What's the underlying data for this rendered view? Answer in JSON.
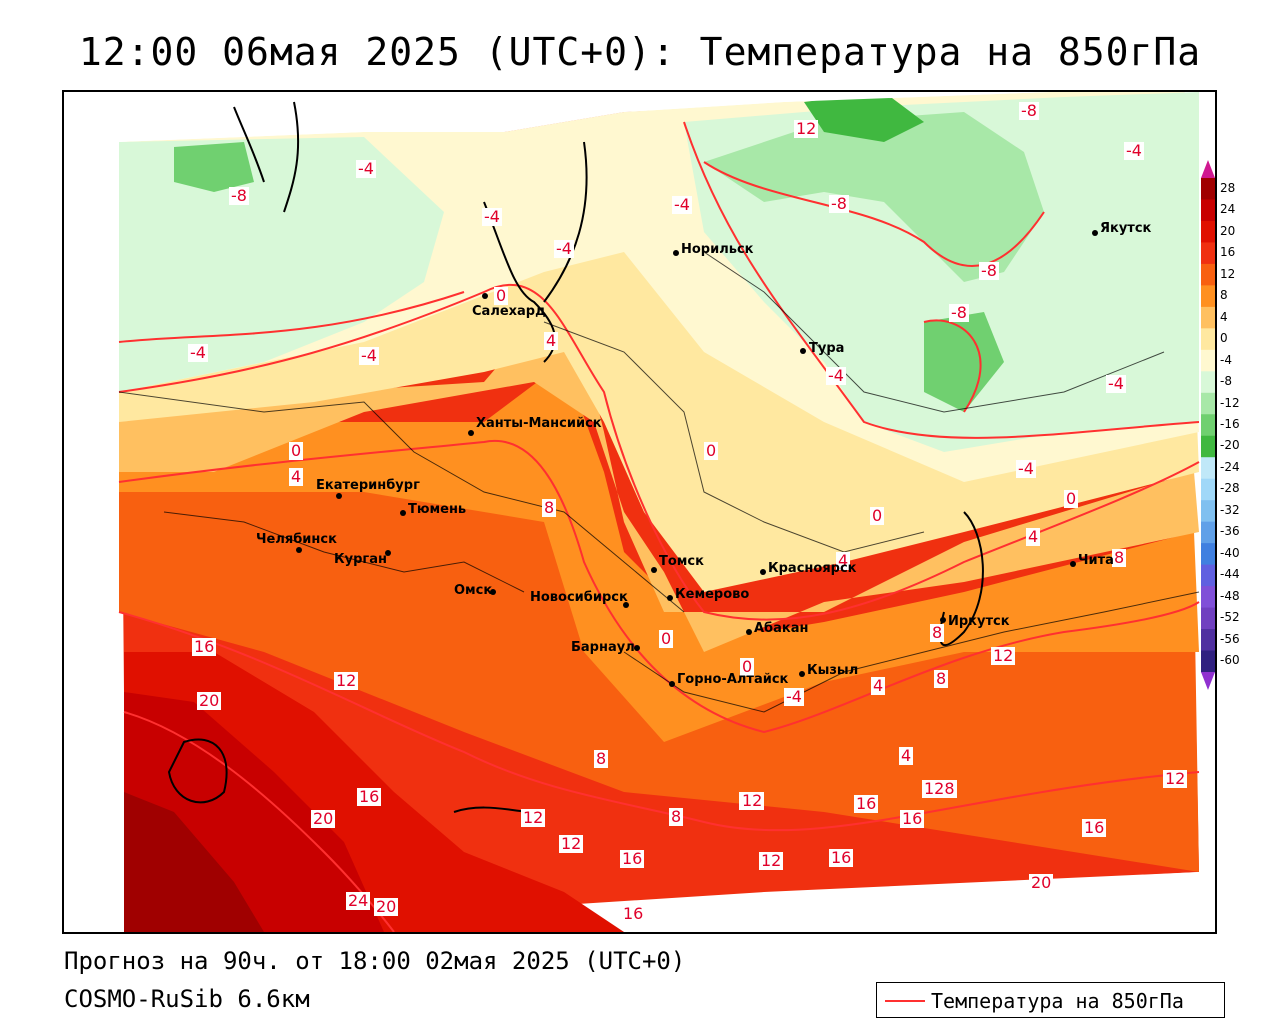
{
  "title": "12:00 06мая 2025 (UTC+0): Температура на 850гПа",
  "footer": {
    "forecast": "Прогноз на 90ч. от 18:00 02мая 2025 (UTC+0)",
    "model": "COSMO-RuSib 6.6км"
  },
  "legend": {
    "label": "Температура на 850гПа",
    "line_color": "#ff3030"
  },
  "colorbar": {
    "ticks": [
      "28",
      "24",
      "20",
      "16",
      "12",
      "8",
      "4",
      "0",
      "-4",
      "-8",
      "-12",
      "-16",
      "-20",
      "-24",
      "-28",
      "-32",
      "-36",
      "-40",
      "-44",
      "-48",
      "-52",
      "-56",
      "-60"
    ],
    "colors": [
      "#a00000",
      "#c80000",
      "#e01000",
      "#f03010",
      "#f86010",
      "#ff9020",
      "#ffc060",
      "#ffe8a0",
      "#fff8d0",
      "#d8f8d8",
      "#a8e8a8",
      "#70d070",
      "#40b840",
      "#c0e8f8",
      "#a0d8f8",
      "#80c0f0",
      "#60a0e8",
      "#4080e0",
      "#6060e0",
      "#8050d8",
      "#7040c0",
      "#5030a0",
      "#302080"
    ]
  },
  "cities": [
    {
      "name": "Норильск"
    },
    {
      "name": "Якутск"
    },
    {
      "name": "Салехард"
    },
    {
      "name": "Тура"
    },
    {
      "name": "Ханты-Мансийск"
    },
    {
      "name": "Екатеринбург"
    },
    {
      "name": "Тюмень"
    },
    {
      "name": "Челябинск"
    },
    {
      "name": "Курган"
    },
    {
      "name": "Омск"
    },
    {
      "name": "Новосибирск"
    },
    {
      "name": "Томск"
    },
    {
      "name": "Кемерово"
    },
    {
      "name": "Красноярск"
    },
    {
      "name": "Абакан"
    },
    {
      "name": "Барнаул"
    },
    {
      "name": "Горно-Алтайск"
    },
    {
      "name": "Кызыл"
    },
    {
      "name": "Иркутск"
    },
    {
      "name": "Чита"
    }
  ],
  "contour_labels": [
    "-8",
    "-4",
    "12",
    "-8",
    "-4",
    "-4",
    "-4",
    "-8",
    "-4",
    "-8",
    "-8",
    "-4",
    "-4",
    "-4",
    "0",
    "4",
    "-4",
    "0",
    "0",
    "4",
    "8",
    "-4",
    "0",
    "4",
    "0",
    "8",
    "4",
    "16",
    "12",
    "20",
    "16",
    "20",
    "12",
    "12",
    "16",
    "8",
    "4",
    "16",
    "12",
    "16",
    "12",
    "24",
    "20",
    "16",
    "20",
    "4",
    "4",
    "12",
    "8",
    "16",
    "12",
    "128",
    "16",
    "0",
    "-4",
    "8",
    "8",
    "0"
  ]
}
